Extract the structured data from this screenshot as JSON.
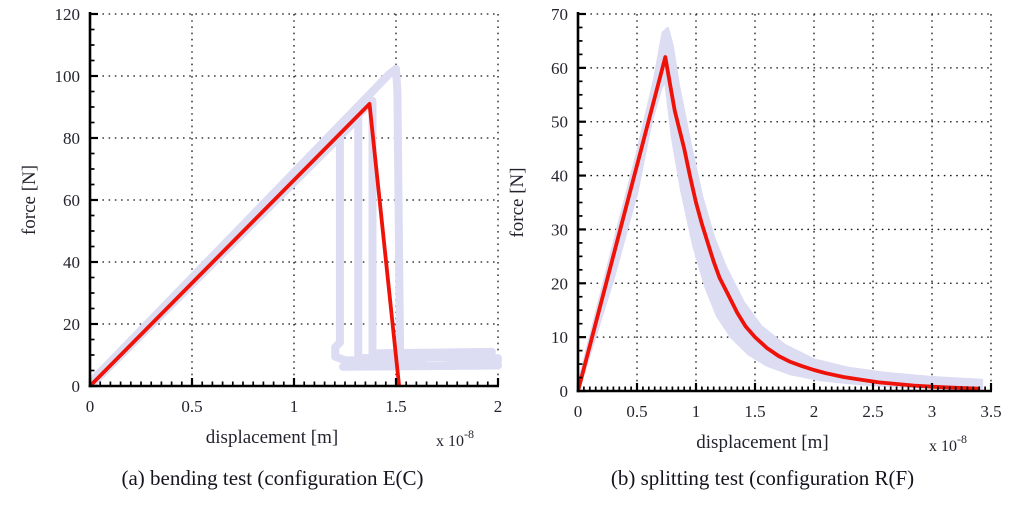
{
  "colors": {
    "simulation": "#ee1209",
    "experiment_band": "#dcdcf3",
    "axis": "#000000",
    "grid": "#161616",
    "tick_text": "#23232e"
  },
  "chart_data": [
    {
      "type": "line",
      "caption": "(a) bending test (configuration E(C)",
      "xlabel": "displacement [m]",
      "ylabel": "force [N]",
      "x_scale_label": "x 10",
      "x_scale_exponent": "-8",
      "xlim": [
        0,
        2
      ],
      "ylim": [
        0,
        120
      ],
      "xtick_values": [
        0,
        0.5,
        1,
        1.5,
        2
      ],
      "xtick_labels": [
        "0",
        "0.5",
        "1",
        "1.5",
        "2"
      ],
      "ytick_values": [
        0,
        20,
        40,
        60,
        80,
        100,
        120
      ],
      "ytick_labels": [
        "0",
        "20",
        "40",
        "60",
        "80",
        "100",
        "120"
      ],
      "x_minor_step": 0.05,
      "y_minor_step": 5,
      "grid": "dotted",
      "legend": "none",
      "series": [
        {
          "name": "experiment-envelope",
          "style": "band-lines",
          "tests": [
            [
              [
                0,
                0
              ],
              [
                1.225,
                80.5
              ],
              [
                1.225,
                14
              ],
              [
                1.202,
                12.5
              ],
              [
                1.202,
                9.5
              ],
              [
                1.25,
                8.3
              ],
              [
                1.63,
                8
              ]
            ],
            [
              [
                0,
                0
              ],
              [
                1.315,
                86.5
              ],
              [
                1.315,
                9
              ],
              [
                1.82,
                9.2
              ],
              [
                2.0,
                9.0
              ]
            ],
            [
              [
                0,
                0.5
              ],
              [
                1.385,
                92
              ],
              [
                1.385,
                10.5
              ],
              [
                1.97,
                11
              ]
            ],
            [
              [
                0,
                1
              ],
              [
                1.465,
                100.5
              ],
              [
                1.5,
                102.3
              ],
              [
                1.507,
                95
              ],
              [
                1.52,
                10
              ],
              [
                2.0,
                8.2
              ]
            ],
            [
              [
                1.24,
                6.2
              ],
              [
                2.0,
                6.6
              ]
            ]
          ]
        },
        {
          "name": "simulation",
          "style": "line",
          "points": [
            [
              0,
              0
            ],
            [
              1.37,
              91
            ],
            [
              1.515,
              0
            ]
          ]
        }
      ]
    },
    {
      "type": "line",
      "caption": "(b) splitting test (configuration R(F)",
      "xlabel": "displacement [m]",
      "ylabel": "force [N]",
      "x_scale_label": "x 10",
      "x_scale_exponent": "-8",
      "xlim": [
        0,
        3.5
      ],
      "ylim": [
        0,
        70
      ],
      "xtick_values": [
        0,
        0.5,
        1,
        1.5,
        2,
        2.5,
        3,
        3.5
      ],
      "xtick_labels": [
        "0",
        "0.5",
        "1",
        "1.5",
        "2",
        "2.5",
        "3",
        "3.5"
      ],
      "ytick_values": [
        0,
        10,
        20,
        30,
        40,
        50,
        60,
        70
      ],
      "ytick_labels": [
        "0",
        "10",
        "20",
        "30",
        "40",
        "50",
        "60",
        "70"
      ],
      "x_minor_step": 0.05,
      "y_minor_step": 2.5,
      "grid": "dotted",
      "legend": "none",
      "series": [
        {
          "name": "experiment-envelope",
          "style": "band-fill",
          "upper": [
            [
              0,
              1
            ],
            [
              0.3,
              27
            ],
            [
              0.5,
              44
            ],
            [
              0.65,
              58
            ],
            [
              0.72,
              66.5
            ],
            [
              0.76,
              67.3
            ],
            [
              0.8,
              64
            ],
            [
              0.85,
              57
            ],
            [
              0.95,
              46
            ],
            [
              1.05,
              36
            ],
            [
              1.15,
              28.5
            ],
            [
              1.25,
              23
            ],
            [
              1.4,
              16.5
            ],
            [
              1.55,
              12
            ],
            [
              1.75,
              8.5
            ],
            [
              2.0,
              5.8
            ],
            [
              2.3,
              4.2
            ],
            [
              2.6,
              3.3
            ],
            [
              3.0,
              2.5
            ],
            [
              3.42,
              2.0
            ]
          ],
          "lower": [
            [
              0,
              0
            ],
            [
              0.3,
              21
            ],
            [
              0.5,
              37
            ],
            [
              0.62,
              50
            ],
            [
              0.7,
              56
            ],
            [
              0.74,
              58
            ],
            [
              0.8,
              47
            ],
            [
              0.88,
              37
            ],
            [
              0.98,
              27
            ],
            [
              1.08,
              19.5
            ],
            [
              1.18,
              14
            ],
            [
              1.3,
              10
            ],
            [
              1.45,
              6.8
            ],
            [
              1.6,
              4.8
            ],
            [
              1.8,
              3.2
            ],
            [
              2.05,
              2.1
            ],
            [
              2.4,
              1.3
            ],
            [
              2.8,
              0.8
            ],
            [
              3.42,
              0.5
            ]
          ]
        },
        {
          "name": "simulation",
          "style": "line",
          "points": [
            [
              0,
              0
            ],
            [
              0.74,
              62
            ],
            [
              0.78,
              57
            ],
            [
              0.82,
              52
            ],
            [
              0.86,
              48.5
            ],
            [
              0.9,
              45
            ],
            [
              0.95,
              39.8
            ],
            [
              1.0,
              35
            ],
            [
              1.05,
              31
            ],
            [
              1.1,
              27.5
            ],
            [
              1.15,
              24
            ],
            [
              1.2,
              21
            ],
            [
              1.27,
              18
            ],
            [
              1.35,
              14.5
            ],
            [
              1.42,
              12
            ],
            [
              1.5,
              10
            ],
            [
              1.6,
              8
            ],
            [
              1.7,
              6.5
            ],
            [
              1.8,
              5.4
            ],
            [
              1.9,
              4.6
            ],
            [
              2.0,
              3.9
            ],
            [
              2.1,
              3.3
            ],
            [
              2.25,
              2.6
            ],
            [
              2.4,
              2.1
            ],
            [
              2.55,
              1.6
            ],
            [
              2.7,
              1.3
            ],
            [
              2.85,
              1.0
            ],
            [
              3.0,
              0.8
            ],
            [
              3.15,
              0.65
            ],
            [
              3.4,
              0.45
            ]
          ]
        }
      ]
    }
  ]
}
